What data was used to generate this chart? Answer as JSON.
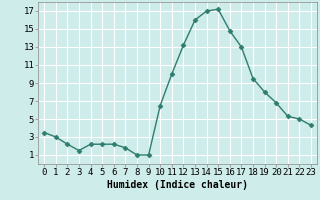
{
  "x": [
    0,
    1,
    2,
    3,
    4,
    5,
    6,
    7,
    8,
    9,
    10,
    11,
    12,
    13,
    14,
    15,
    16,
    17,
    18,
    19,
    20,
    21,
    22,
    23
  ],
  "y": [
    3.5,
    3.0,
    2.2,
    1.5,
    2.2,
    2.2,
    2.2,
    1.8,
    1.0,
    1.0,
    6.5,
    10.0,
    13.2,
    16.0,
    17.0,
    17.2,
    14.8,
    13.0,
    9.5,
    8.0,
    6.8,
    5.3,
    5.0,
    4.3
  ],
  "line_color": "#2e7d6e",
  "marker": "D",
  "marker_size": 2.5,
  "xlabel": "Humidex (Indice chaleur)",
  "xlim": [
    -0.5,
    23.5
  ],
  "ylim": [
    0,
    18
  ],
  "xticks": [
    0,
    1,
    2,
    3,
    4,
    5,
    6,
    7,
    8,
    9,
    10,
    11,
    12,
    13,
    14,
    15,
    16,
    17,
    18,
    19,
    20,
    21,
    22,
    23
  ],
  "yticks": [
    1,
    3,
    5,
    7,
    9,
    11,
    13,
    15,
    17
  ],
  "bg_color": "#ceecea",
  "grid_color": "#ffffff",
  "grid_minor_color": "#e8f8f6",
  "xlabel_fontsize": 7,
  "tick_fontsize": 6.5
}
